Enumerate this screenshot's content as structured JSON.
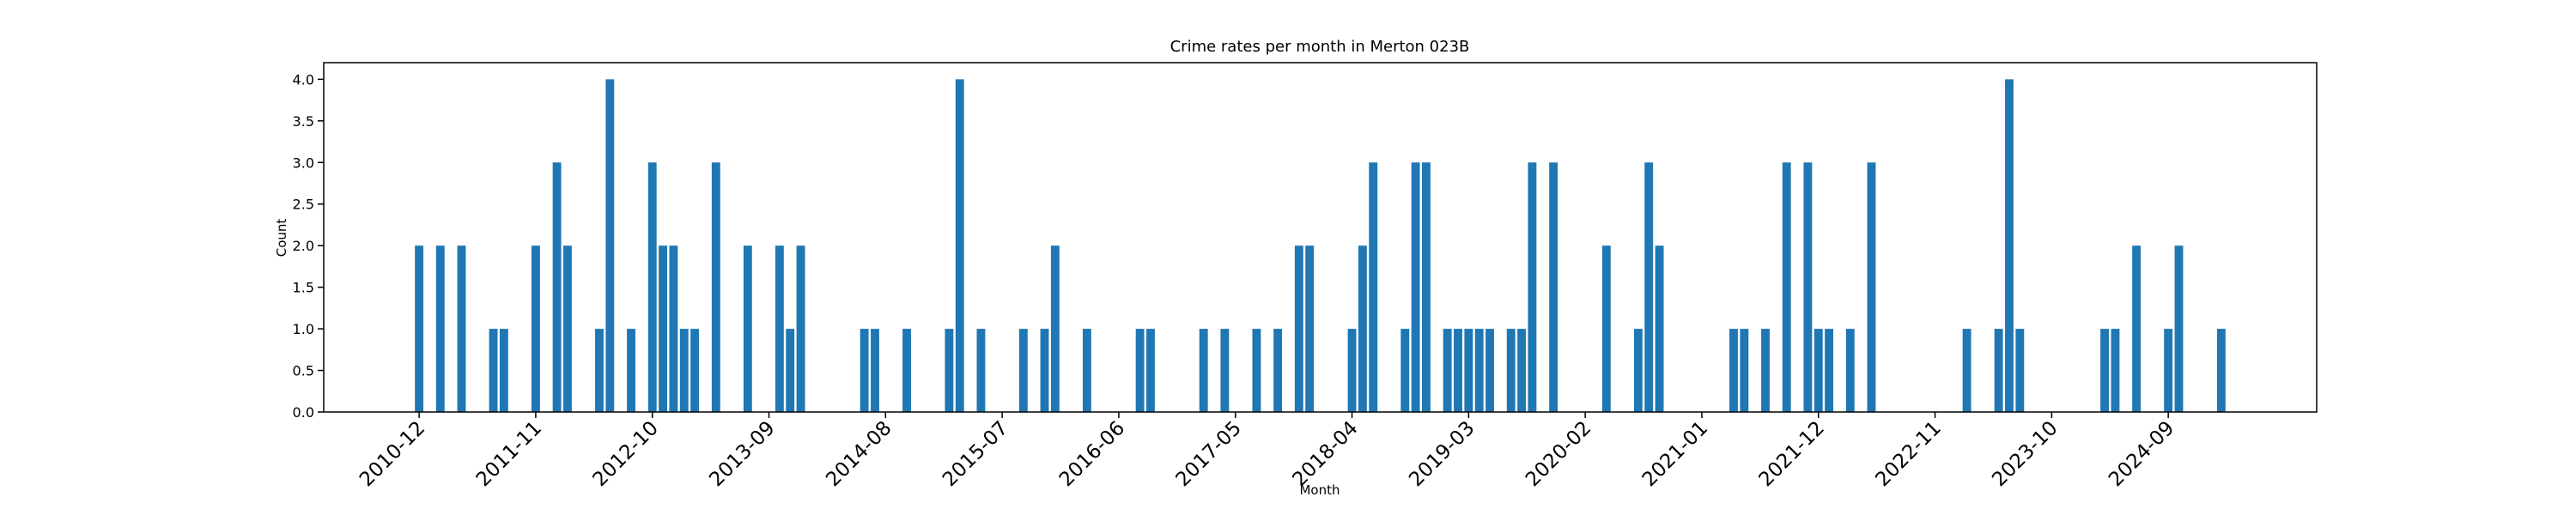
{
  "chart_data": {
    "type": "bar",
    "title": "Crime rates per month in Merton 023B",
    "x_label": "Month",
    "y_label": "Count",
    "color": "#1f77b4",
    "x": [
      "2010-12",
      "2011-02",
      "2011-04",
      "2011-07",
      "2011-08",
      "2011-11",
      "2012-01",
      "2012-02",
      "2012-05",
      "2012-06",
      "2012-08",
      "2012-10",
      "2012-11",
      "2012-12",
      "2013-01",
      "2013-02",
      "2013-04",
      "2013-07",
      "2013-10",
      "2013-11",
      "2013-12",
      "2014-06",
      "2014-07",
      "2014-10",
      "2015-02",
      "2015-03",
      "2015-05",
      "2015-09",
      "2015-11",
      "2015-12",
      "2016-03",
      "2016-08",
      "2016-09",
      "2017-02",
      "2017-04",
      "2017-07",
      "2017-09",
      "2017-11",
      "2017-12",
      "2018-04",
      "2018-05",
      "2018-06",
      "2018-09",
      "2018-10",
      "2018-11",
      "2019-01",
      "2019-02",
      "2019-03",
      "2019-04",
      "2019-05",
      "2019-07",
      "2019-08",
      "2019-09",
      "2019-11",
      "2020-04",
      "2020-07",
      "2020-08",
      "2020-09",
      "2021-04",
      "2021-05",
      "2021-07",
      "2021-09",
      "2021-11",
      "2021-12",
      "2022-01",
      "2022-03",
      "2022-05",
      "2023-02",
      "2023-05",
      "2023-06",
      "2023-07",
      "2024-03",
      "2024-04",
      "2024-06",
      "2024-09",
      "2024-10",
      "2025-02"
    ],
    "values": [
      2,
      2,
      2,
      1,
      1,
      2,
      3,
      2,
      1,
      4,
      1,
      3,
      2,
      2,
      1,
      1,
      3,
      2,
      2,
      1,
      2,
      1,
      1,
      1,
      1,
      4,
      1,
      1,
      1,
      2,
      1,
      1,
      1,
      1,
      1,
      1,
      1,
      2,
      2,
      1,
      2,
      3,
      1,
      3,
      3,
      1,
      1,
      1,
      1,
      1,
      1,
      1,
      3,
      3,
      2,
      1,
      3,
      2,
      1,
      1,
      1,
      3,
      3,
      1,
      1,
      1,
      3,
      1,
      1,
      4,
      1,
      1,
      1,
      2,
      1,
      2,
      1
    ],
    "xlim": [
      "2010-03",
      "2025-11"
    ],
    "xticks": [
      "2010-12",
      "2011-11",
      "2012-10",
      "2013-09",
      "2014-08",
      "2015-07",
      "2016-06",
      "2017-05",
      "2018-04",
      "2019-03",
      "2020-02",
      "2021-01",
      "2021-12",
      "2022-11",
      "2023-10",
      "2024-09"
    ],
    "ylim": [
      0,
      4.2
    ],
    "yticks": [
      {
        "value": 0,
        "label": "0.0"
      },
      {
        "value": 0.5,
        "label": "0.5"
      },
      {
        "value": 1,
        "label": "1.0"
      },
      {
        "value": 1.5,
        "label": "1.5"
      },
      {
        "value": 2,
        "label": "2.0"
      },
      {
        "value": 2.5,
        "label": "2.5"
      },
      {
        "value": 3,
        "label": "3.0"
      },
      {
        "value": 3.5,
        "label": "3.5"
      },
      {
        "value": 4,
        "label": "4.0"
      }
    ]
  }
}
